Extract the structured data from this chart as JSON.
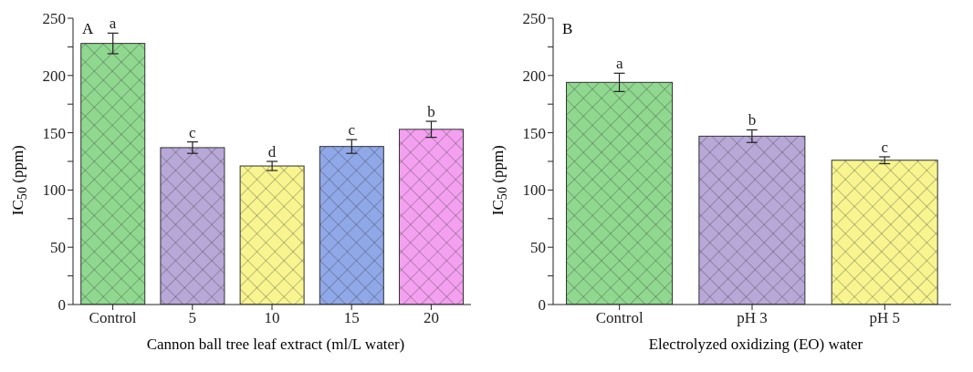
{
  "chart_data": [
    {
      "type": "bar",
      "title": "A",
      "xlabel": "Cannon ball tree leaf extract (ml/L water)",
      "ylabel": "IC$_{50}$ (ppm)",
      "categories": [
        "Control",
        "5",
        "10",
        "15",
        "20"
      ],
      "values": [
        228,
        137,
        121,
        138,
        153
      ],
      "errors": [
        9,
        5,
        4,
        6,
        7
      ],
      "colors": [
        "#90d890",
        "#b8a8d8",
        "#f8f590",
        "#90a8e8",
        "#f4a0f0"
      ],
      "ylim": [
        0,
        250
      ],
      "yticks": [
        0,
        {
          "value": 25,
          "label": null
        },
        50,
        {
          "value": 75,
          "label": null
        },
        100,
        {
          "value": 125,
          "label": null
        },
        150,
        {
          "value": 175,
          "label": null
        },
        200,
        {
          "value": 225,
          "label": null
        },
        250
      ],
      "annotations": [
        {
          "text": "a",
          "x": "Control",
          "y": 237
        },
        {
          "text": "c",
          "x": "5",
          "y": 142
        },
        {
          "text": "d",
          "x": "10",
          "y": 125
        },
        {
          "text": "c",
          "x": "15",
          "y": 144
        },
        {
          "text": "b",
          "x": "20",
          "y": 160
        }
      ],
      "grid": false,
      "legend": false
    },
    {
      "type": "bar",
      "title": "B",
      "xlabel": "Electrolyzed oxidizing (EO) water",
      "ylabel": "IC$_{50}$ (ppm)",
      "categories": [
        "Control",
        "pH 3",
        "pH 5"
      ],
      "values": [
        194,
        147,
        126
      ],
      "errors": [
        8,
        5.5,
        3
      ],
      "colors": [
        "#90d890",
        "#b8a8d8",
        "#f8f590"
      ],
      "ylim": [
        0,
        250
      ],
      "yticks": [
        0,
        {
          "value": 25,
          "label": null
        },
        50,
        {
          "value": 75,
          "label": null
        },
        100,
        {
          "value": 125,
          "label": null
        },
        150,
        {
          "value": 175,
          "label": null
        },
        200,
        {
          "value": 225,
          "label": null
        },
        250
      ],
      "annotations": [
        {
          "text": "a",
          "x": "Control",
          "y": 202
        },
        {
          "text": "b",
          "x": "pH 3",
          "y": 152.5
        },
        {
          "text": "c",
          "x": "pH 5",
          "y": 129
        }
      ],
      "grid": false,
      "legend": false
    }
  ]
}
